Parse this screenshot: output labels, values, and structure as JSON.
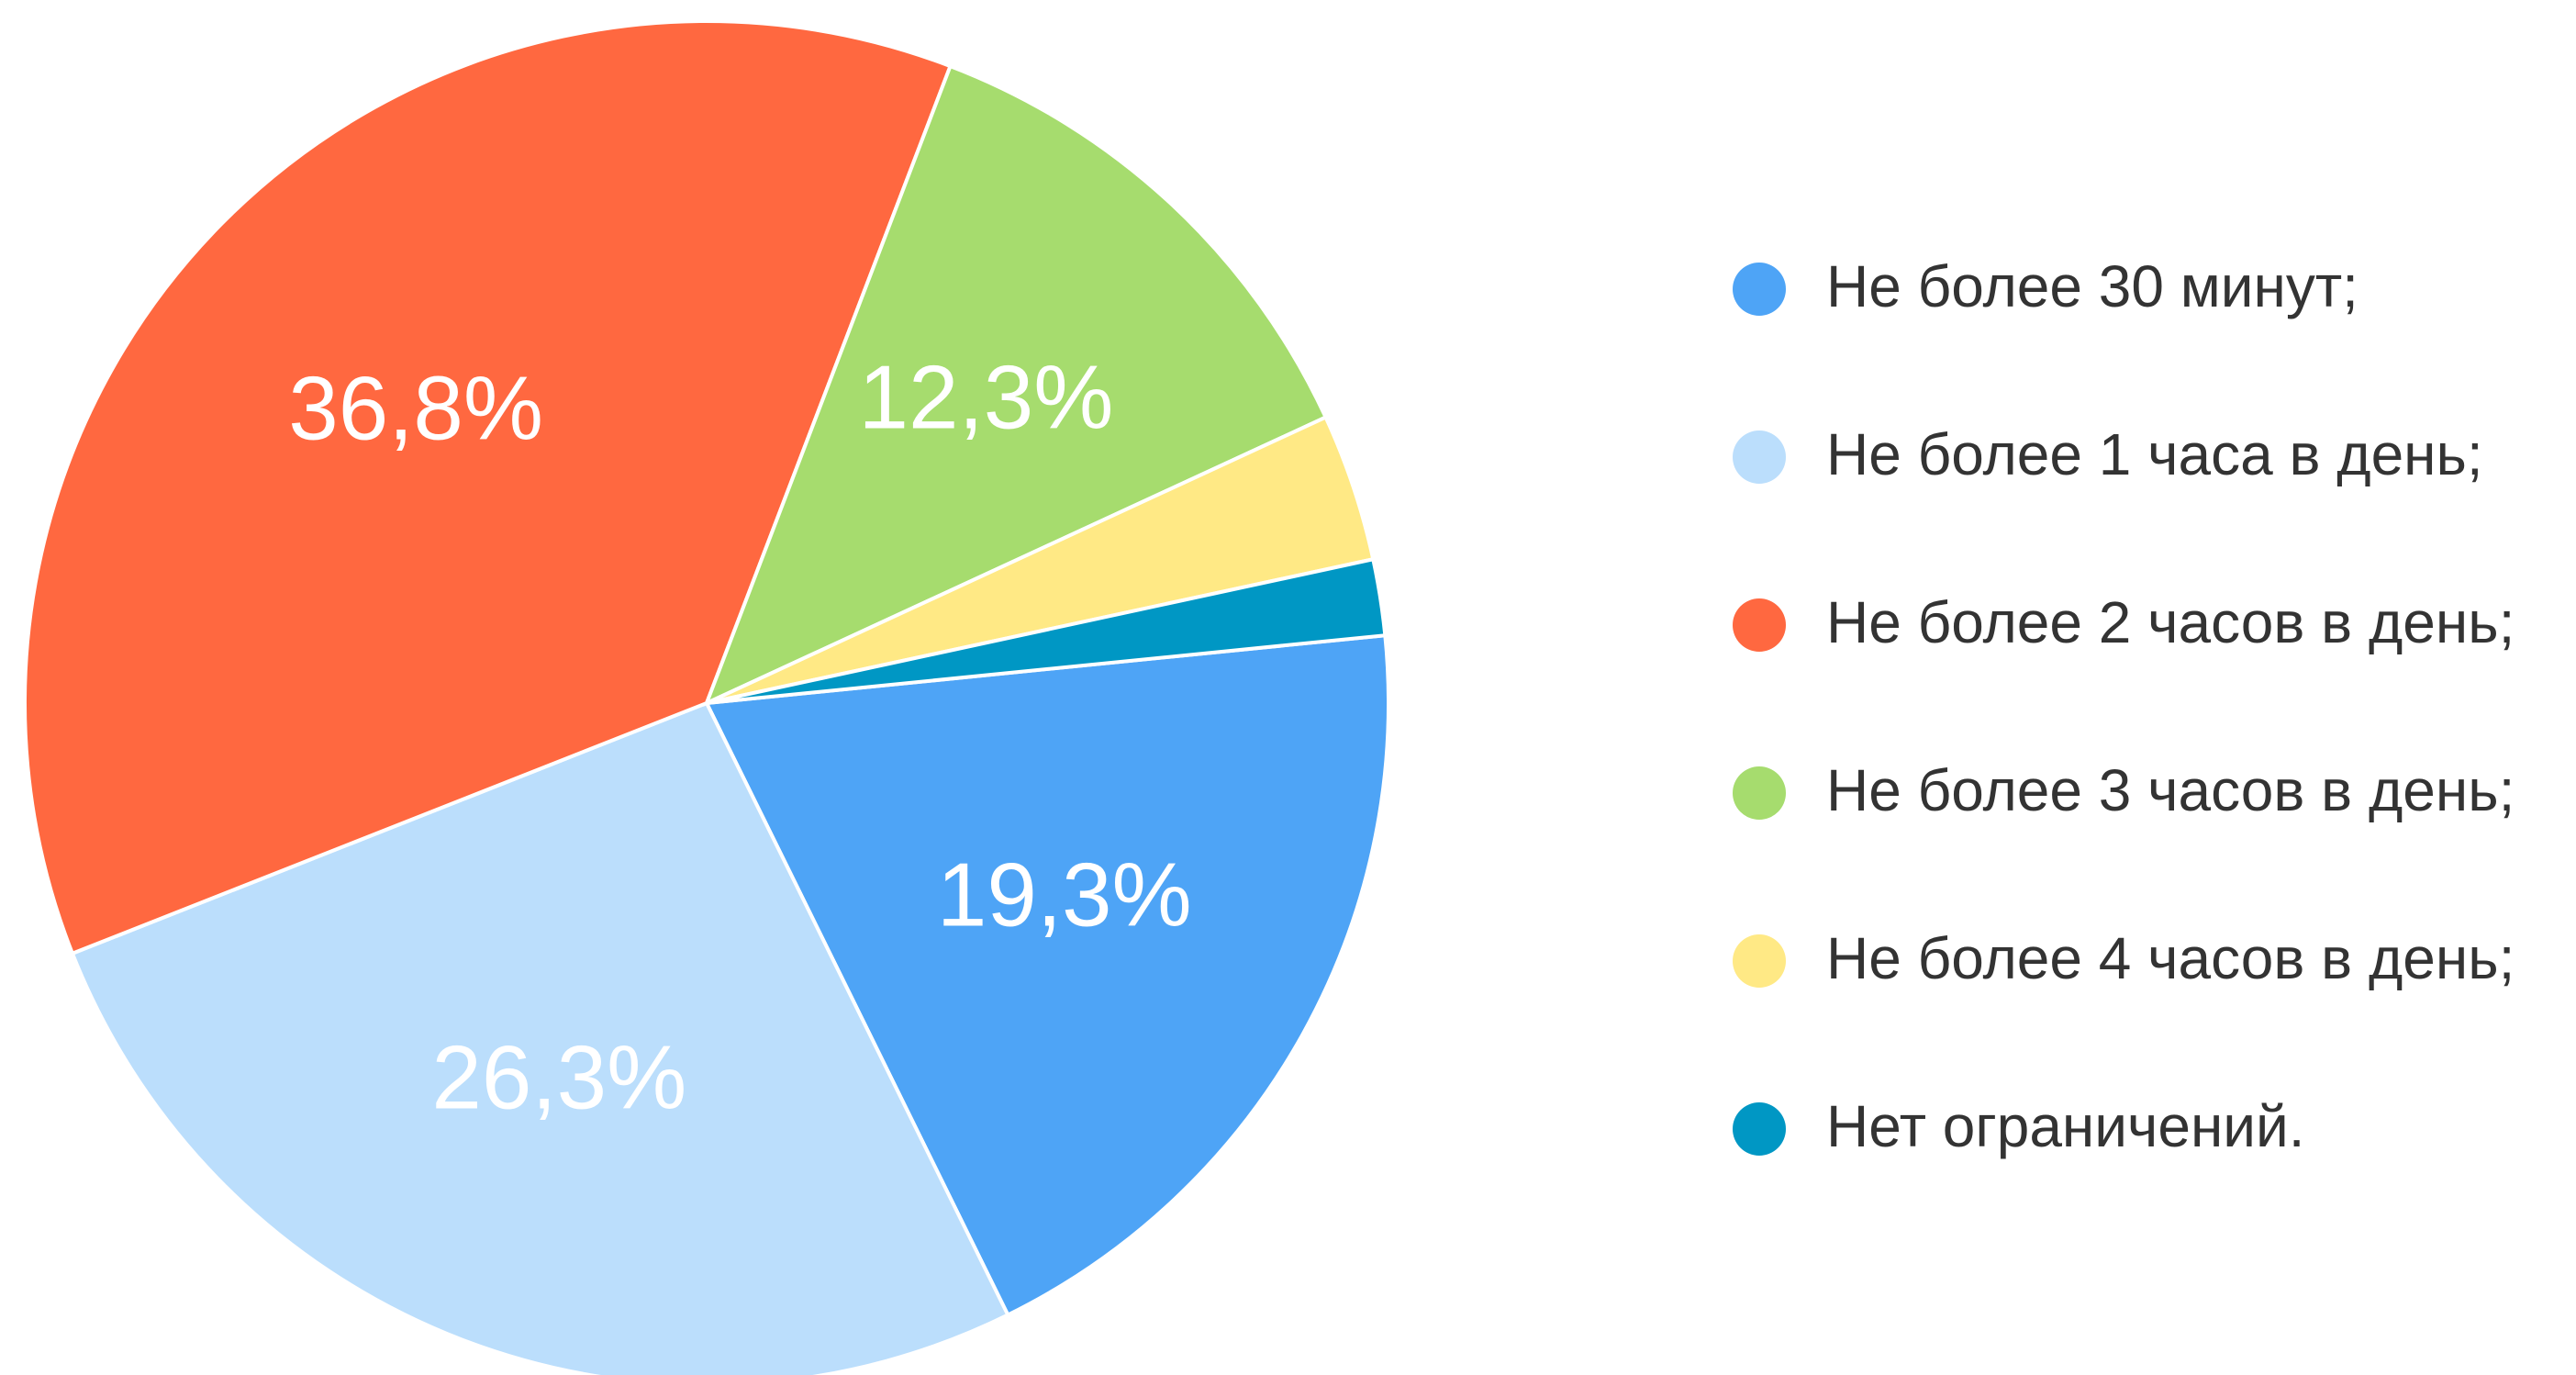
{
  "chart_data": {
    "type": "pie",
    "categories": [
      "Не более 30 минут;",
      "Не более 1 часа в день;",
      "Не более 2 часов в день;",
      "Не более 3 часов в день;",
      "Не более 4 часов в день;",
      "Нет ограничений."
    ],
    "values": [
      19.3,
      26.3,
      36.8,
      12.3,
      3.5,
      1.8
    ],
    "value_labels": [
      "19,3%",
      "26,3%",
      "36,8%",
      "12,3%",
      null,
      null
    ],
    "colors": [
      "#4ea4f6",
      "#bbdefc",
      "#ff6840",
      "#a6dc6e",
      "#ffe985",
      "#0097c4"
    ],
    "legend": "right"
  }
}
